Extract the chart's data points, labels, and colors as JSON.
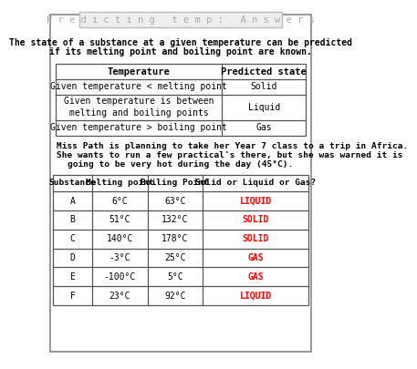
{
  "title": "P r e d i c t i n g   t e m p :   A n s w e r s",
  "bg_color": "#ffffff",
  "intro_text_line1": "The state of a substance at a given temperature can be predicted",
  "intro_text_line2": "if its melting point and boiling point are known.",
  "table1_headers": [
    "Temperature",
    "Predicted state"
  ],
  "table1_rows": [
    [
      "Given temperature < melting point",
      "Solid"
    ],
    [
      "Given temperature is between\nmelting and boiling points",
      "Liquid"
    ],
    [
      "Given temperature > boiling point",
      "Gas"
    ]
  ],
  "scenario_line1": "Miss Path is planning to take her Year 7 class to a trip in Africa.",
  "scenario_line2": "She wants to run a few practical's there, but she was warned it is",
  "scenario_line3": "going to be very hot during the day (45°C).",
  "table2_headers": [
    "Substance",
    "Melting point",
    "Boiling Point",
    "Solid or Liquid or Gas?"
  ],
  "table2_rows": [
    [
      "A",
      "6°C",
      "63°C",
      "LIQUID"
    ],
    [
      "B",
      "51°C",
      "132°C",
      "SOLID"
    ],
    [
      "C",
      "140°C",
      "178°C",
      "SOLID"
    ],
    [
      "D",
      "-3°C",
      "25°C",
      "GAS"
    ],
    [
      "E",
      "-100°C",
      "5°C",
      "GAS"
    ],
    [
      "F",
      "23°C",
      "92°C",
      "LIQUID"
    ]
  ],
  "answer_color": "#ff0000",
  "title_color": "#aaaaaa",
  "border_color": "#888888",
  "table_border_color": "#555555"
}
